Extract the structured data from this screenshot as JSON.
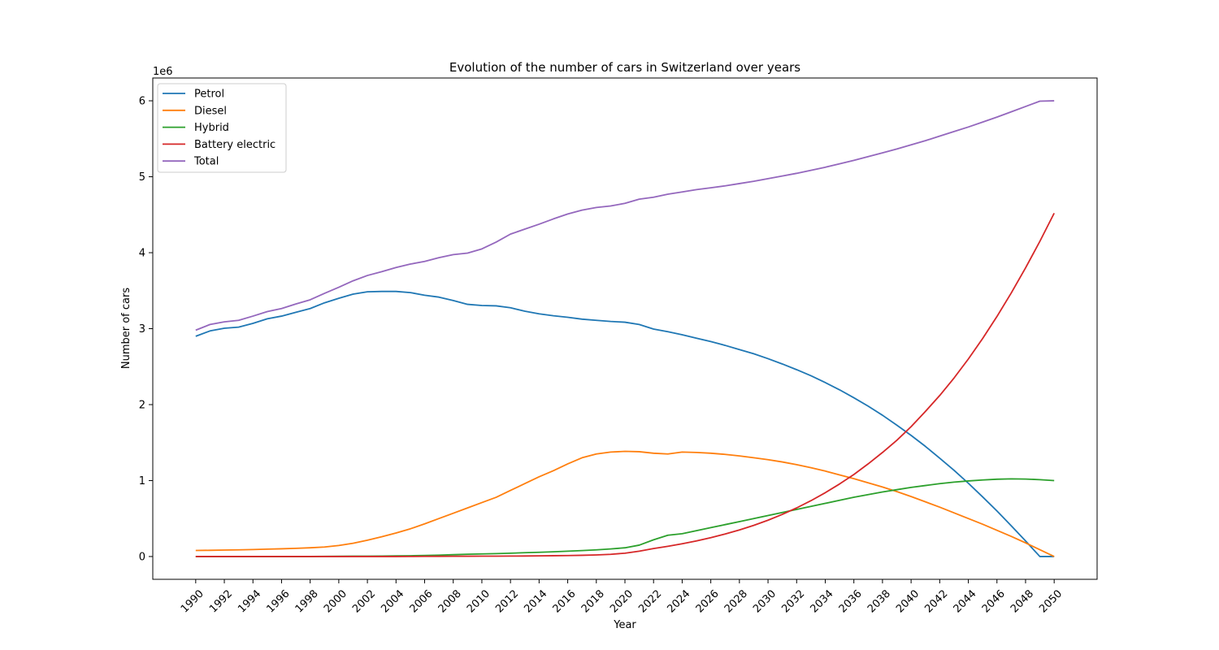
{
  "chart_data": {
    "type": "line",
    "title": "Evolution of the number of cars in Switzerland over years",
    "xlabel": "Year",
    "ylabel": "Number of cars",
    "y_multiplier_label": "1e6",
    "xlim": [
      1987,
      2053
    ],
    "ylim": [
      -300000,
      6300000
    ],
    "x_ticks": [
      1990,
      1992,
      1994,
      1996,
      1998,
      2000,
      2002,
      2004,
      2006,
      2008,
      2010,
      2012,
      2014,
      2016,
      2018,
      2020,
      2022,
      2024,
      2026,
      2028,
      2030,
      2032,
      2034,
      2036,
      2038,
      2040,
      2042,
      2044,
      2046,
      2048,
      2050
    ],
    "y_ticks": [
      0,
      1000000,
      2000000,
      3000000,
      4000000,
      5000000,
      6000000
    ],
    "y_tick_labels": [
      "0",
      "1",
      "2",
      "3",
      "4",
      "5",
      "6"
    ],
    "grid": false,
    "legend_position": "top-left",
    "x": [
      1990,
      1991,
      1992,
      1993,
      1994,
      1995,
      1996,
      1997,
      1998,
      1999,
      2000,
      2001,
      2002,
      2003,
      2004,
      2005,
      2006,
      2007,
      2008,
      2009,
      2010,
      2011,
      2012,
      2013,
      2014,
      2015,
      2016,
      2017,
      2018,
      2019,
      2020,
      2021,
      2022,
      2023,
      2024,
      2025,
      2026,
      2027,
      2028,
      2029,
      2030,
      2031,
      2032,
      2033,
      2034,
      2035,
      2036,
      2037,
      2038,
      2039,
      2040,
      2041,
      2042,
      2043,
      2044,
      2045,
      2046,
      2047,
      2048,
      2049,
      2050
    ],
    "series": [
      {
        "name": "Petrol",
        "color": "#1f77b4",
        "values": [
          2900000,
          2970000,
          3005000,
          3020000,
          3070000,
          3130000,
          3165000,
          3215000,
          3265000,
          3340000,
          3400000,
          3455000,
          3485000,
          3490000,
          3490000,
          3475000,
          3440000,
          3415000,
          3370000,
          3320000,
          3305000,
          3300000,
          3275000,
          3230000,
          3195000,
          3170000,
          3150000,
          3125000,
          3110000,
          3095000,
          3085000,
          3055000,
          2995000,
          2960000,
          2920000,
          2875000,
          2830000,
          2780000,
          2725000,
          2670000,
          2605000,
          2535000,
          2460000,
          2380000,
          2290000,
          2195000,
          2090000,
          1980000,
          1860000,
          1730000,
          1595000,
          1450000,
          1295000,
          1135000,
          965000,
          785000,
          600000,
          405000,
          205000,
          0,
          0
        ]
      },
      {
        "name": "Diesel",
        "color": "#ff7f0e",
        "values": [
          80000,
          82000,
          85000,
          88000,
          92000,
          97000,
          102000,
          108000,
          115000,
          125000,
          145000,
          175000,
          215000,
          260000,
          310000,
          365000,
          430000,
          500000,
          570000,
          640000,
          710000,
          780000,
          870000,
          960000,
          1050000,
          1130000,
          1220000,
          1300000,
          1350000,
          1375000,
          1385000,
          1380000,
          1360000,
          1350000,
          1375000,
          1370000,
          1360000,
          1345000,
          1325000,
          1300000,
          1275000,
          1245000,
          1210000,
          1170000,
          1125000,
          1075000,
          1025000,
          970000,
          915000,
          855000,
          790000,
          720000,
          650000,
          575000,
          500000,
          425000,
          345000,
          265000,
          180000,
          90000,
          0
        ]
      },
      {
        "name": "Hybrid",
        "color": "#2ca02c",
        "values": [
          0,
          0,
          0,
          0,
          0,
          0,
          0,
          0,
          0,
          2000,
          3000,
          4000,
          5000,
          6000,
          8000,
          10000,
          14000,
          18000,
          24000,
          30000,
          34000,
          38000,
          44000,
          50000,
          56000,
          62000,
          70000,
          78000,
          88000,
          100000,
          115000,
          150000,
          220000,
          280000,
          300000,
          340000,
          380000,
          420000,
          460000,
          500000,
          540000,
          580000,
          620000,
          660000,
          700000,
          740000,
          780000,
          815000,
          850000,
          880000,
          910000,
          935000,
          960000,
          980000,
          995000,
          1008000,
          1018000,
          1022000,
          1020000,
          1012000,
          1000000
        ]
      },
      {
        "name": "Battery electric",
        "color": "#d62728",
        "values": [
          0,
          0,
          0,
          0,
          0,
          0,
          0,
          0,
          0,
          0,
          0,
          0,
          0,
          0,
          0,
          1000,
          2000,
          3000,
          3500,
          4000,
          4500,
          5000,
          6000,
          7000,
          9000,
          11000,
          13000,
          16000,
          21000,
          29000,
          44000,
          70000,
          105000,
          135000,
          168000,
          205000,
          248000,
          296000,
          350000,
          410000,
          478000,
          555000,
          640000,
          735000,
          840000,
          955000,
          1080000,
          1220000,
          1370000,
          1530000,
          1710000,
          1910000,
          2120000,
          2350000,
          2600000,
          2870000,
          3160000,
          3470000,
          3800000,
          4150000,
          4520000
        ]
      },
      {
        "name": "Total",
        "color": "#9467bd",
        "values": [
          2980000,
          3055000,
          3090000,
          3110000,
          3165000,
          3225000,
          3265000,
          3325000,
          3380000,
          3465000,
          3545000,
          3630000,
          3700000,
          3750000,
          3805000,
          3850000,
          3885000,
          3935000,
          3975000,
          3995000,
          4050000,
          4140000,
          4245000,
          4310000,
          4375000,
          4445000,
          4510000,
          4560000,
          4595000,
          4615000,
          4650000,
          4705000,
          4730000,
          4770000,
          4800000,
          4830000,
          4855000,
          4880000,
          4910000,
          4940000,
          4975000,
          5010000,
          5045000,
          5085000,
          5125000,
          5170000,
          5215000,
          5265000,
          5315000,
          5365000,
          5420000,
          5475000,
          5535000,
          5595000,
          5655000,
          5720000,
          5785000,
          5855000,
          5925000,
          5995000,
          6000000
        ]
      }
    ]
  }
}
